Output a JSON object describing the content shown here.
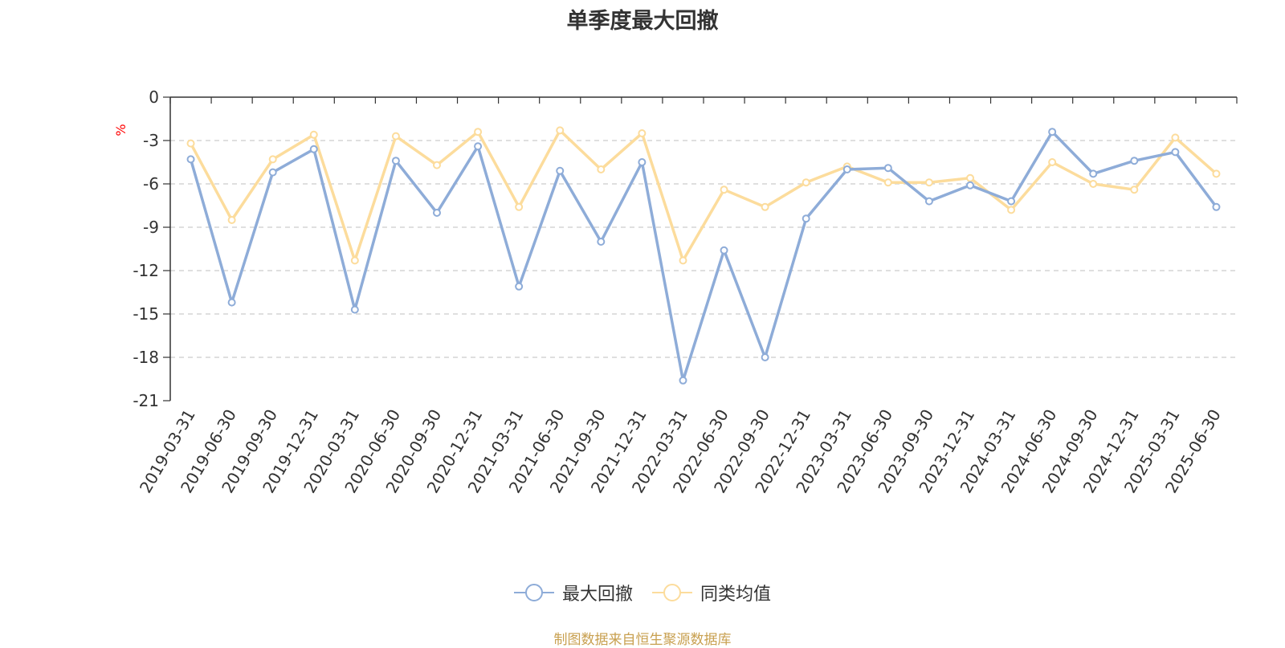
{
  "chart_data": {
    "type": "line",
    "title": "单季度最大回撤",
    "ylabel": "%",
    "ylim": [
      -21,
      0
    ],
    "yticks": [
      0,
      -3,
      -6,
      -9,
      -12,
      -15,
      -18,
      -21
    ],
    "grid": true,
    "legend_position": "bottom",
    "categories": [
      "2019-03-31",
      "2019-06-30",
      "2019-09-30",
      "2019-12-31",
      "2020-03-31",
      "2020-06-30",
      "2020-09-30",
      "2020-12-31",
      "2021-03-31",
      "2021-06-30",
      "2021-09-30",
      "2021-12-31",
      "2022-03-31",
      "2022-06-30",
      "2022-09-30",
      "2022-12-31",
      "2023-03-31",
      "2023-06-30",
      "2023-09-30",
      "2023-12-31",
      "2024-03-31",
      "2024-06-30",
      "2024-09-30",
      "2024-12-31",
      "2025-03-31",
      "2025-06-30"
    ],
    "series": [
      {
        "name": "最大回撤",
        "color": "#8eacd8",
        "values": [
          -4.3,
          -14.2,
          -5.2,
          -3.6,
          -14.7,
          -4.4,
          -8.0,
          -3.4,
          -13.1,
          -5.1,
          -10.0,
          -4.5,
          -19.6,
          -10.6,
          -18.0,
          -8.4,
          -5.0,
          -4.9,
          -7.2,
          -6.1,
          -7.2,
          -2.4,
          -5.3,
          -4.4,
          -3.8,
          -7.6
        ]
      },
      {
        "name": "同类均值",
        "color": "#fcdc9c",
        "values": [
          -3.2,
          -8.5,
          -4.3,
          -2.6,
          -11.3,
          -2.7,
          -4.7,
          -2.4,
          -7.6,
          -2.3,
          -5.0,
          -2.5,
          -11.3,
          -6.4,
          -7.6,
          -5.9,
          -4.8,
          -5.9,
          -5.9,
          -5.6,
          -7.8,
          -4.5,
          -6.0,
          -6.4,
          -2.8,
          -5.3
        ]
      }
    ]
  },
  "legend": {
    "items": [
      "最大回撤",
      "同类均值"
    ]
  },
  "source": {
    "text": "制图数据来自恒生聚源数据库",
    "color": "#c8a050"
  },
  "colors": {
    "axis": "#333333",
    "grid": "#cccccc",
    "ylabel": "#ff0000"
  }
}
